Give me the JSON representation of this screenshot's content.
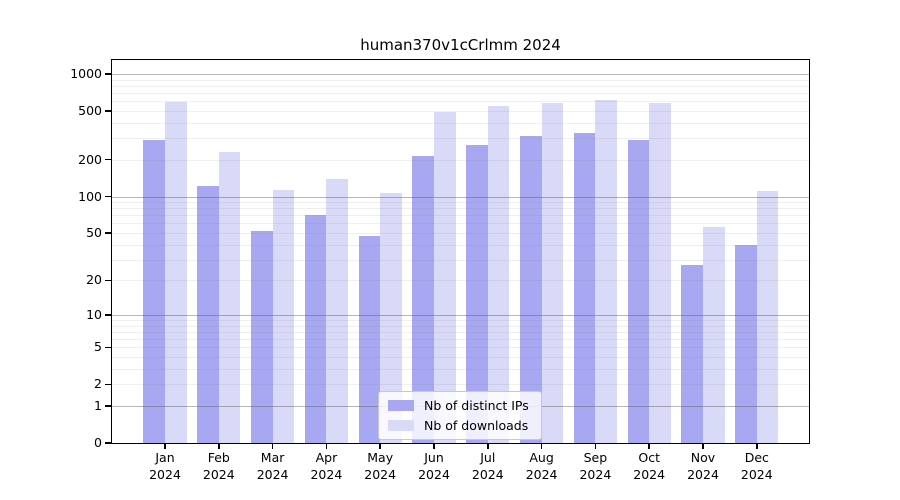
{
  "chart_data": {
    "type": "bar",
    "title": "human370v1cCrlmm 2024",
    "categories": [
      "Jan 2024",
      "Feb 2024",
      "Mar 2024",
      "Apr 2024",
      "May 2024",
      "Jun 2024",
      "Jul 2024",
      "Aug 2024",
      "Sep 2024",
      "Oct 2024",
      "Nov 2024",
      "Dec 2024"
    ],
    "series": [
      {
        "name": "Nb of distinct IPs",
        "color": "#a8a8f2",
        "values": [
          290,
          121,
          52,
          71,
          47,
          216,
          266,
          311,
          333,
          288,
          27,
          40
        ]
      },
      {
        "name": "Nb of downloads",
        "color": "#d9d9f8",
        "values": [
          588,
          230,
          113,
          138,
          106,
          487,
          548,
          577,
          620,
          585,
          56,
          110
        ]
      }
    ],
    "y_ticks": [
      0,
      1,
      2,
      5,
      10,
      20,
      50,
      100,
      200,
      500,
      1000
    ],
    "scale": "log1p",
    "ylim": [
      0,
      1300
    ],
    "xlabel": "",
    "ylabel": "",
    "grid": true,
    "legend_position": "bottom-center-inside"
  },
  "colors": {
    "background": "#ffffff",
    "axis": "#000000",
    "major_grid": "rgba(90,90,90,0.45)",
    "minor_grid": "rgba(120,120,120,0.12)"
  }
}
